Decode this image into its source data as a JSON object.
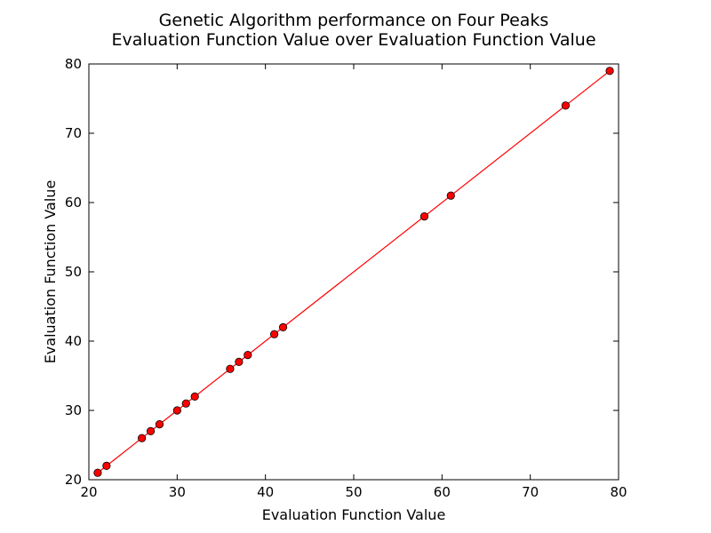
{
  "chart_data": {
    "type": "line",
    "title": "Genetic Algorithm performance on Four Peaks",
    "subtitle": "Evaluation Function Value over Evaluation Function Value",
    "xlabel": "Evaluation Function Value",
    "ylabel": "Evaluation Function Value",
    "xlim": [
      20,
      80
    ],
    "ylim": [
      20,
      80
    ],
    "xticks": [
      20,
      30,
      40,
      50,
      60,
      70,
      80
    ],
    "yticks": [
      20,
      30,
      40,
      50,
      60,
      70,
      80
    ],
    "grid": false,
    "series": [
      {
        "color": "#ff0000",
        "marker": "circle",
        "x": [
          21,
          22,
          26,
          27,
          28,
          30,
          31,
          32,
          36,
          37,
          38,
          41,
          42,
          58,
          61,
          74,
          79
        ],
        "y": [
          21,
          22,
          26,
          27,
          28,
          30,
          31,
          32,
          36,
          37,
          38,
          41,
          42,
          58,
          61,
          74,
          79
        ]
      }
    ]
  }
}
